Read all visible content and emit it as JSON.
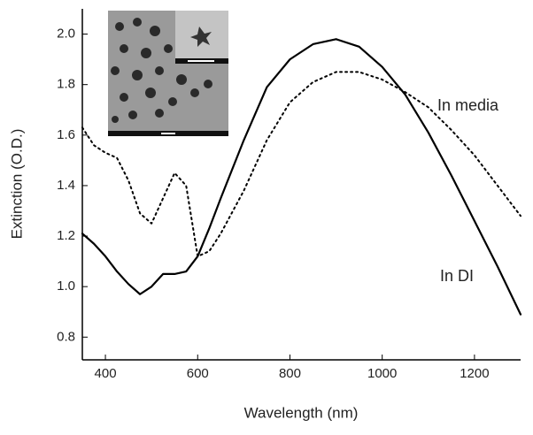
{
  "chart_data": {
    "type": "line",
    "xlabel": "Wavelength (nm)",
    "ylabel": "Extinction (O.D.)",
    "x": [
      350,
      375,
      400,
      425,
      450,
      475,
      500,
      525,
      550,
      575,
      600,
      625,
      650,
      700,
      750,
      800,
      850,
      900,
      950,
      1000,
      1050,
      1100,
      1150,
      1200,
      1250,
      1300
    ],
    "series": [
      {
        "name": "In DI",
        "color": "#000000",
        "style": "solid",
        "values": [
          1.21,
          1.17,
          1.12,
          1.06,
          1.01,
          0.97,
          1.0,
          1.05,
          1.05,
          1.06,
          1.12,
          1.23,
          1.35,
          1.58,
          1.79,
          1.9,
          1.96,
          1.98,
          1.95,
          1.87,
          1.76,
          1.61,
          1.44,
          1.26,
          1.08,
          0.89
        ]
      },
      {
        "name": "In media",
        "color": "#000000",
        "style": "dotted",
        "values": [
          1.63,
          1.56,
          1.53,
          1.51,
          1.42,
          1.29,
          1.25,
          1.35,
          1.45,
          1.4,
          1.12,
          1.14,
          1.21,
          1.38,
          1.58,
          1.73,
          1.81,
          1.85,
          1.85,
          1.82,
          1.77,
          1.71,
          1.62,
          1.52,
          1.4,
          1.28
        ]
      }
    ],
    "xlim": [
      350,
      1300
    ],
    "ylim": [
      0.71,
      2.1
    ],
    "xticks": [
      400,
      600,
      800,
      1000,
      1200
    ],
    "yticks": [
      0.8,
      {
        "value": 1,
        "label": "1.0"
      },
      1.2,
      1.4,
      1.6,
      1.8,
      {
        "value": 2,
        "label": "2.0"
      }
    ],
    "grid": false
  }
}
